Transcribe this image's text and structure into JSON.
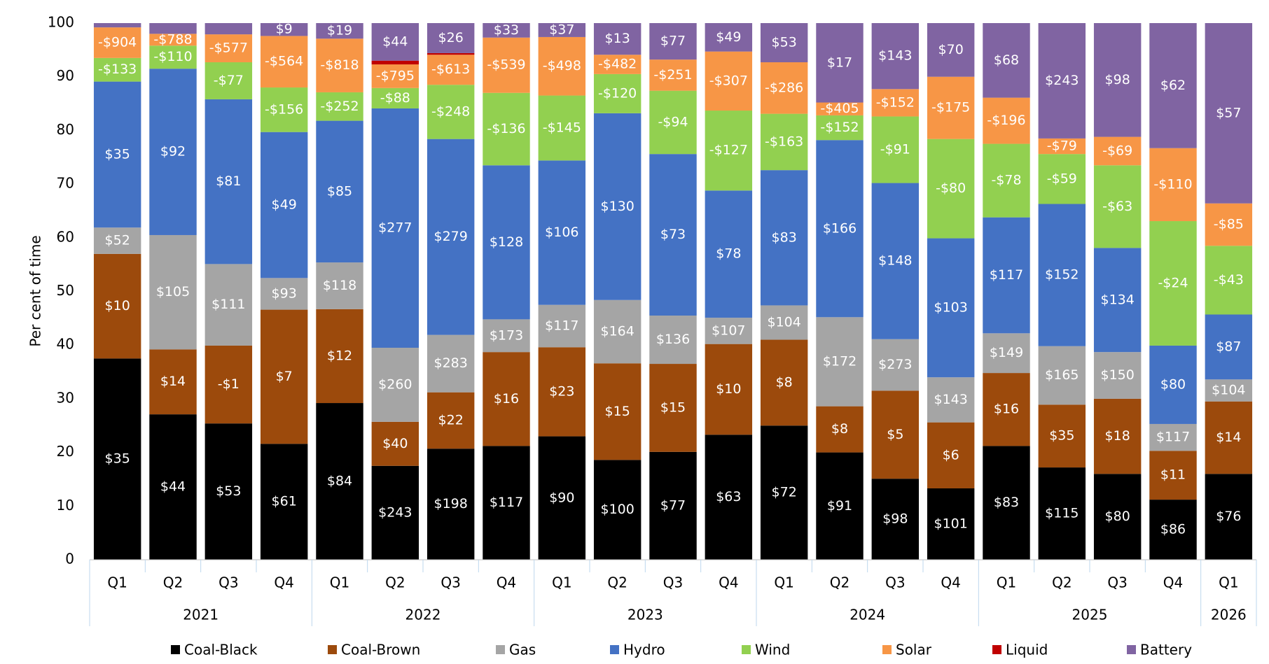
{
  "chart_data": {
    "type": "stacked-bar",
    "y_label": "Per cent of time",
    "categories": [
      "Q1",
      "Q2",
      "Q3",
      "Q4",
      "Q1",
      "Q2",
      "Q3",
      "Q4",
      "Q1",
      "Q2",
      "Q3",
      "Q4",
      "Q1",
      "Q2",
      "Q3",
      "Q4",
      "Q1",
      "Q2",
      "Q3",
      "Q4",
      "Q1"
    ],
    "years": [
      "2021",
      null,
      null,
      null,
      "2022",
      null,
      null,
      null,
      "2023",
      null,
      null,
      null,
      "2024",
      null,
      null,
      null,
      "2025",
      null,
      null,
      null,
      "2026"
    ],
    "ylim": [
      0,
      100
    ],
    "yticks": [
      0,
      10,
      20,
      30,
      40,
      50,
      60,
      70,
      80,
      90,
      100
    ],
    "grid": false,
    "legend": "bottom",
    "series": [
      {
        "name": "Coal-Black",
        "color": "#000000",
        "values": [
          37.5,
          27.1,
          25.4,
          21.6,
          29.2,
          17.5,
          20.7,
          21.2,
          23.0,
          18.6,
          20.1,
          23.3,
          25.0,
          20.0,
          15.1,
          13.3,
          21.2,
          17.2,
          16.0,
          11.2,
          16.0
        ],
        "price_labels": [
          "$35",
          "$44",
          "$53",
          "$61",
          "$84",
          "$243",
          "$198",
          "$117",
          "$90",
          "$100",
          "$77",
          "$63",
          "$72",
          "$91",
          "$98",
          "$101",
          "$83",
          "$115",
          "$80",
          "$86",
          "$76"
        ]
      },
      {
        "name": "Coal-Brown",
        "color": "#9c4a0c",
        "values": [
          19.5,
          12.1,
          14.5,
          25.0,
          17.5,
          8.2,
          10.5,
          17.5,
          16.6,
          18.0,
          16.4,
          16.9,
          16.0,
          8.6,
          16.4,
          12.3,
          13.6,
          11.7,
          14.0,
          9.1,
          13.5
        ],
        "price_labels": [
          "$10",
          "$14",
          "-$1",
          "$7",
          "$12",
          "$40",
          "$22",
          "$16",
          "$23",
          "$15",
          "$15",
          "$10",
          "$8",
          "$8",
          "$5",
          "$6",
          "$16",
          "$35",
          "$18",
          "$11",
          "$14"
        ]
      },
      {
        "name": "Gas",
        "color": "#a5a5a5",
        "values": [
          4.9,
          21.3,
          15.2,
          5.9,
          8.7,
          13.8,
          10.7,
          6.1,
          7.9,
          11.8,
          9.0,
          4.9,
          6.4,
          16.6,
          9.6,
          8.4,
          7.4,
          10.9,
          8.7,
          5.0,
          4.1
        ],
        "price_labels": [
          "$52",
          "$105",
          "$111",
          "$93",
          "$118",
          "$260",
          "$283",
          "$173",
          "$117",
          "$164",
          "$136",
          "$107",
          "$104",
          "$172",
          "$273",
          "$143",
          "$149",
          "$165",
          "$150",
          "$117",
          "$104"
        ]
      },
      {
        "name": "Hydro",
        "color": "#4472c4",
        "values": [
          27.2,
          31.0,
          30.7,
          27.2,
          26.4,
          44.6,
          36.5,
          28.7,
          26.9,
          34.8,
          30.1,
          23.7,
          25.2,
          33.0,
          29.1,
          25.9,
          21.6,
          26.5,
          19.4,
          14.6,
          12.1
        ],
        "price_labels": [
          "$35",
          "$92",
          "$81",
          "$49",
          "$85",
          "$277",
          "$279",
          "$128",
          "$106",
          "$130",
          "$73",
          "$78",
          "$83",
          "$166",
          "$148",
          "$103",
          "$117",
          "$152",
          "$134",
          "$80",
          "$87"
        ]
      },
      {
        "name": "Wind",
        "color": "#92d050",
        "values": [
          4.4,
          4.3,
          6.9,
          8.3,
          5.3,
          3.8,
          10.1,
          13.5,
          12.1,
          7.3,
          11.8,
          14.9,
          10.5,
          4.6,
          12.4,
          18.5,
          13.7,
          9.3,
          15.4,
          23.2,
          12.8
        ],
        "price_labels": [
          "-$133",
          "-$110",
          "-$77",
          "-$156",
          "-$252",
          "-$88",
          "-$248",
          "-$136",
          "-$145",
          "-$120",
          "-$94",
          "-$127",
          "-$163",
          "-$152",
          "-$91",
          "-$80",
          "-$78",
          "-$59",
          "-$63",
          "-$24",
          "-$43"
        ]
      },
      {
        "name": "Solar",
        "color": "#f79646",
        "values": [
          5.7,
          2.2,
          5.2,
          9.6,
          10.0,
          4.4,
          5.6,
          10.3,
          10.9,
          3.6,
          5.8,
          11.0,
          9.6,
          2.4,
          5.1,
          11.6,
          8.6,
          2.9,
          5.3,
          13.6,
          7.9
        ],
        "price_labels": [
          "-$904",
          "-$788",
          "-$577",
          "-$564",
          "-$818",
          "-$795",
          "-$613",
          "-$539",
          "-$498",
          "-$482",
          "-$251",
          "-$307",
          "-$286",
          "-$405",
          "-$152",
          "-$175",
          "-$196",
          "-$79",
          "-$69",
          "-$110",
          "-$85"
        ]
      },
      {
        "name": "Liquid",
        "color": "#c00000",
        "values": [
          0,
          0,
          0,
          0,
          0,
          0.7,
          0.3,
          0,
          0,
          0,
          0,
          0,
          0,
          0,
          0,
          0,
          0,
          0,
          0,
          0,
          0
        ],
        "price_labels": [
          null,
          null,
          null,
          null,
          null,
          null,
          null,
          null,
          null,
          null,
          null,
          null,
          null,
          null,
          null,
          null,
          null,
          null,
          null,
          null,
          null
        ]
      },
      {
        "name": "Battery",
        "color": "#8064a2",
        "values": [
          0.8,
          2.0,
          2.1,
          2.4,
          2.9,
          7.0,
          5.6,
          2.7,
          2.6,
          5.9,
          6.8,
          5.3,
          7.3,
          14.8,
          12.3,
          10.0,
          13.9,
          21.5,
          21.2,
          23.3,
          33.6
        ],
        "price_labels": [
          null,
          null,
          null,
          "$9",
          "$19",
          "$44",
          "$26",
          "$33",
          "$37",
          "$13",
          "$77",
          "$49",
          "$53",
          "$17",
          "$143",
          "$70",
          "$68",
          "$243",
          "$98",
          "$62",
          "$57"
        ]
      }
    ]
  }
}
